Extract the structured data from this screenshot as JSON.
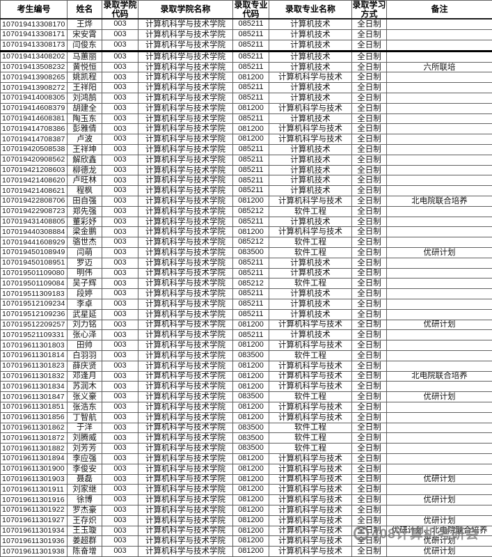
{
  "table": {
    "columns": [
      {
        "key": "id",
        "label": "考生编号"
      },
      {
        "key": "name",
        "label": "姓名"
      },
      {
        "key": "college_code",
        "label": "录取学院代码"
      },
      {
        "key": "college_name",
        "label": "录取学院名称"
      },
      {
        "key": "major_code",
        "label": "录取专业代码"
      },
      {
        "key": "major_name",
        "label": "录取专业名称"
      },
      {
        "key": "study_mode",
        "label": "录取学习方式"
      },
      {
        "key": "remark",
        "label": "备注"
      }
    ],
    "rows": [
      [
        "107019413308170",
        "王烨",
        "003",
        "计算机科学与技术学院",
        "085211",
        "计算机技术",
        "全日制",
        ""
      ],
      [
        "107019413308171",
        "宋安霄",
        "003",
        "计算机科学与技术学院",
        "085211",
        "计算机技术",
        "全日制",
        ""
      ],
      [
        "107019413308173",
        "闫俊东",
        "003",
        "计算机科学与技术学院",
        "085211",
        "计算机技术",
        "全日制",
        ""
      ],
      [
        "107019413408202",
        "马蕙丽",
        "003",
        "计算机科学与技术学院",
        "085211",
        "计算机技术",
        "全日制",
        ""
      ],
      [
        "107019413508232",
        "黄悦恒",
        "003",
        "计算机科学与技术学院",
        "085211",
        "计算机技术",
        "全日制",
        "六所联培"
      ],
      [
        "107019413908265",
        "姚凯程",
        "003",
        "计算机科学与技术学院",
        "081200",
        "计算机科学与技术",
        "全日制",
        ""
      ],
      [
        "107019413908272",
        "王祥阳",
        "003",
        "计算机科学与技术学院",
        "085211",
        "计算机技术",
        "全日制",
        ""
      ],
      [
        "107019414008305",
        "刘鸿鹄",
        "003",
        "计算机科学与技术学院",
        "085211",
        "计算机技术",
        "全日制",
        ""
      ],
      [
        "107019414608379",
        "胡建全",
        "003",
        "计算机科学与技术学院",
        "081200",
        "计算机科学与技术",
        "全日制",
        ""
      ],
      [
        "107019414608381",
        "陶玉东",
        "003",
        "计算机科学与技术学院",
        "085211",
        "计算机技术",
        "全日制",
        ""
      ],
      [
        "107019414708386",
        "彭雅倩",
        "003",
        "计算机科学与技术学院",
        "081200",
        "计算机科学与技术",
        "全日制",
        ""
      ],
      [
        "107019414708387",
        "卢波",
        "003",
        "计算机科学与技术学院",
        "081200",
        "计算机科学与技术",
        "全日制",
        ""
      ],
      [
        "107019420508538",
        "王祥坤",
        "003",
        "计算机科学与技术学院",
        "085211",
        "计算机技术",
        "全日制",
        ""
      ],
      [
        "107019420908562",
        "解欣鑫",
        "003",
        "计算机科学与技术学院",
        "085211",
        "计算机技术",
        "全日制",
        ""
      ],
      [
        "107019421208603",
        "柳德龙",
        "003",
        "计算机科学与技术学院",
        "085211",
        "计算机技术",
        "全日制",
        ""
      ],
      [
        "107019421408620",
        "卢旺林",
        "003",
        "计算机科学与技术学院",
        "085211",
        "计算机技术",
        "全日制",
        ""
      ],
      [
        "107019421408621",
        "程枫",
        "003",
        "计算机科学与技术学院",
        "085211",
        "计算机技术",
        "全日制",
        ""
      ],
      [
        "107019422808706",
        "田自强",
        "003",
        "计算机科学与技术学院",
        "081200",
        "计算机科学与技术",
        "全日制",
        "北电院联合培养"
      ],
      [
        "107019422908723",
        "郑先强",
        "003",
        "计算机科学与技术学院",
        "085212",
        "软件工程",
        "全日制",
        ""
      ],
      [
        "107019431408805",
        "董彩妤",
        "003",
        "计算机科学与技术学院",
        "085211",
        "计算机技术",
        "全日制",
        ""
      ],
      [
        "107019440308884",
        "梁金鹏",
        "003",
        "计算机科学与技术学院",
        "081200",
        "计算机科学与技术",
        "全日制",
        ""
      ],
      [
        "107019441608929",
        "骆世杰",
        "003",
        "计算机科学与技术学院",
        "085212",
        "软件工程",
        "全日制",
        ""
      ],
      [
        "107019450108949",
        "闫萌",
        "003",
        "计算机科学与技术学院",
        "083500",
        "软件工程",
        "全日制",
        "优研计划"
      ],
      [
        "107019450108951",
        "罗迈",
        "003",
        "计算机科学与技术学院",
        "085211",
        "计算机技术",
        "全日制",
        ""
      ],
      [
        "107019501109080",
        "明伟",
        "003",
        "计算机科学与技术学院",
        "085211",
        "计算机技术",
        "全日制",
        ""
      ],
      [
        "107019501109084",
        "吴子辉",
        "003",
        "计算机科学与技术学院",
        "085212",
        "软件工程",
        "全日制",
        ""
      ],
      [
        "107019511309183",
        "段婷",
        "003",
        "计算机科学与技术学院",
        "085211",
        "计算机技术",
        "全日制",
        ""
      ],
      [
        "107019512109234",
        "李卓",
        "003",
        "计算机科学与技术学院",
        "085211",
        "计算机技术",
        "全日制",
        ""
      ],
      [
        "107019512109236",
        "武星延",
        "003",
        "计算机科学与技术学院",
        "085211",
        "计算机技术",
        "全日制",
        ""
      ],
      [
        "107019512209257",
        "刘力铭",
        "003",
        "计算机科学与技术学院",
        "081200",
        "计算机科学与技术",
        "全日制",
        "优研计划"
      ],
      [
        "107019521109331",
        "张心泽",
        "003",
        "计算机科学与技术学院",
        "085211",
        "计算机技术",
        "全日制",
        ""
      ],
      [
        "107019611301803",
        "田帅",
        "003",
        "计算机科学与技术学院",
        "081200",
        "计算机科学与技术",
        "全日制",
        ""
      ],
      [
        "107019611301814",
        "白羽羽",
        "003",
        "计算机科学与技术学院",
        "083500",
        "软件工程",
        "全日制",
        ""
      ],
      [
        "107019611301823",
        "薛庆贤",
        "003",
        "计算机科学与技术学院",
        "081200",
        "计算机科学与技术",
        "全日制",
        ""
      ],
      [
        "107019611301832",
        "邓逢月",
        "003",
        "计算机科学与技术学院",
        "081200",
        "计算机科学与技术",
        "全日制",
        "北电院联合培养"
      ],
      [
        "107019611301834",
        "苏润木",
        "003",
        "计算机科学与技术学院",
        "081200",
        "计算机科学与技术",
        "全日制",
        ""
      ],
      [
        "107019611301847",
        "张义豪",
        "003",
        "计算机科学与技术学院",
        "083500",
        "软件工程",
        "全日制",
        "优研计划"
      ],
      [
        "107019611301851",
        "张浩东",
        "003",
        "计算机科学与技术学院",
        "081200",
        "计算机科学与技术",
        "全日制",
        ""
      ],
      [
        "107019611301856",
        "丁智航",
        "003",
        "计算机科学与技术学院",
        "081200",
        "计算机科学与技术",
        "全日制",
        ""
      ],
      [
        "107019611301862",
        "于洋",
        "003",
        "计算机科学与技术学院",
        "083500",
        "软件工程",
        "全日制",
        ""
      ],
      [
        "107019611301872",
        "刘腾威",
        "003",
        "计算机科学与技术学院",
        "083500",
        "软件工程",
        "全日制",
        ""
      ],
      [
        "107019611301882",
        "刘芳芳",
        "003",
        "计算机科学与技术学院",
        "083500",
        "软件工程",
        "全日制",
        ""
      ],
      [
        "107019611301894",
        "李应强",
        "003",
        "计算机科学与技术学院",
        "081200",
        "计算机科学与技术",
        "全日制",
        ""
      ],
      [
        "107019611301900",
        "李俊安",
        "003",
        "计算机科学与技术学院",
        "081200",
        "计算机科学与技术",
        "全日制",
        ""
      ],
      [
        "107019611301903",
        "聂磊",
        "003",
        "计算机科学与技术学院",
        "081200",
        "计算机科学与技术",
        "全日制",
        "优研计划"
      ],
      [
        "107019611301911",
        "刘家继",
        "003",
        "计算机科学与技术学院",
        "081200",
        "计算机科学与技术",
        "全日制",
        ""
      ],
      [
        "107019611301916",
        "徐博",
        "003",
        "计算机科学与技术学院",
        "081200",
        "计算机科学与技术",
        "全日制",
        "优研计划"
      ],
      [
        "107019611301922",
        "罗杰豪",
        "003",
        "计算机科学与技术学院",
        "081200",
        "计算机科学与技术",
        "全日制",
        ""
      ],
      [
        "107019611301927",
        "王存炽",
        "003",
        "计算机科学与技术学院",
        "081200",
        "计算机科学与技术",
        "全日制",
        "优研计划"
      ],
      [
        "107019611301934",
        "王玉璇",
        "003",
        "计算机科学与技术学院",
        "081200",
        "计算机科学与技术",
        "全日制",
        "优研计划、北电院联合培养"
      ],
      [
        "107019611301936",
        "姜超群",
        "003",
        "计算机科学与技术学院",
        "081200",
        "计算机科学与技术",
        "全日制",
        "优研计划"
      ],
      [
        "107019611301938",
        "陈奋增",
        "003",
        "计算机科学与技术学院",
        "081200",
        "计算机科学与技术",
        "全日制",
        "优研计划"
      ]
    ]
  },
  "watermark": {
    "text": "408计算机考研会"
  }
}
